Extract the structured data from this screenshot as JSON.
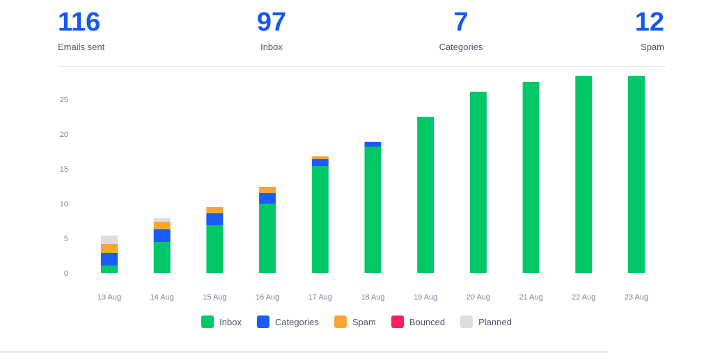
{
  "stats": [
    {
      "value": "116",
      "label": "Emails sent"
    },
    {
      "value": "97",
      "label": "Inbox"
    },
    {
      "value": "7",
      "label": "Categories"
    },
    {
      "value": "12",
      "label": "Spam"
    }
  ],
  "colors": {
    "Inbox": "#00c767",
    "Categories": "#1a5cf5",
    "Spam": "#f7a535",
    "Bounced": "#fb1f64",
    "Planned": "#dcdde0"
  },
  "chart_data": {
    "type": "bar",
    "stacked": true,
    "categories": [
      "13 Aug",
      "14 Aug",
      "15 Aug",
      "16 Aug",
      "17 Aug",
      "18 Aug",
      "19 Aug",
      "20 Aug",
      "21 Aug",
      "22 Aug",
      "23 Aug"
    ],
    "series": [
      {
        "name": "Inbox",
        "values": [
          1.1,
          4.5,
          6.9,
          10,
          15.4,
          18.2,
          22.5,
          26.1,
          27.5,
          28.4,
          28.4
        ]
      },
      {
        "name": "Categories",
        "values": [
          1.8,
          1.8,
          1.7,
          1.5,
          1,
          0.7,
          0,
          0,
          0,
          0,
          0
        ]
      },
      {
        "name": "Spam",
        "values": [
          1.3,
          1.1,
          0.9,
          0.9,
          0.4,
          0,
          0,
          0,
          0,
          0,
          0
        ]
      },
      {
        "name": "Bounced",
        "values": [
          0,
          0,
          0,
          0,
          0,
          0,
          0,
          0,
          0,
          0,
          0
        ]
      },
      {
        "name": "Planned",
        "values": [
          1.2,
          0.5,
          0,
          0,
          0,
          0,
          0,
          0,
          0,
          0,
          0
        ]
      }
    ],
    "yticks": [
      0,
      5,
      10,
      15,
      20,
      25
    ],
    "ylim": [
      0,
      28.5
    ],
    "grid": false,
    "legend": "bottom-center"
  }
}
